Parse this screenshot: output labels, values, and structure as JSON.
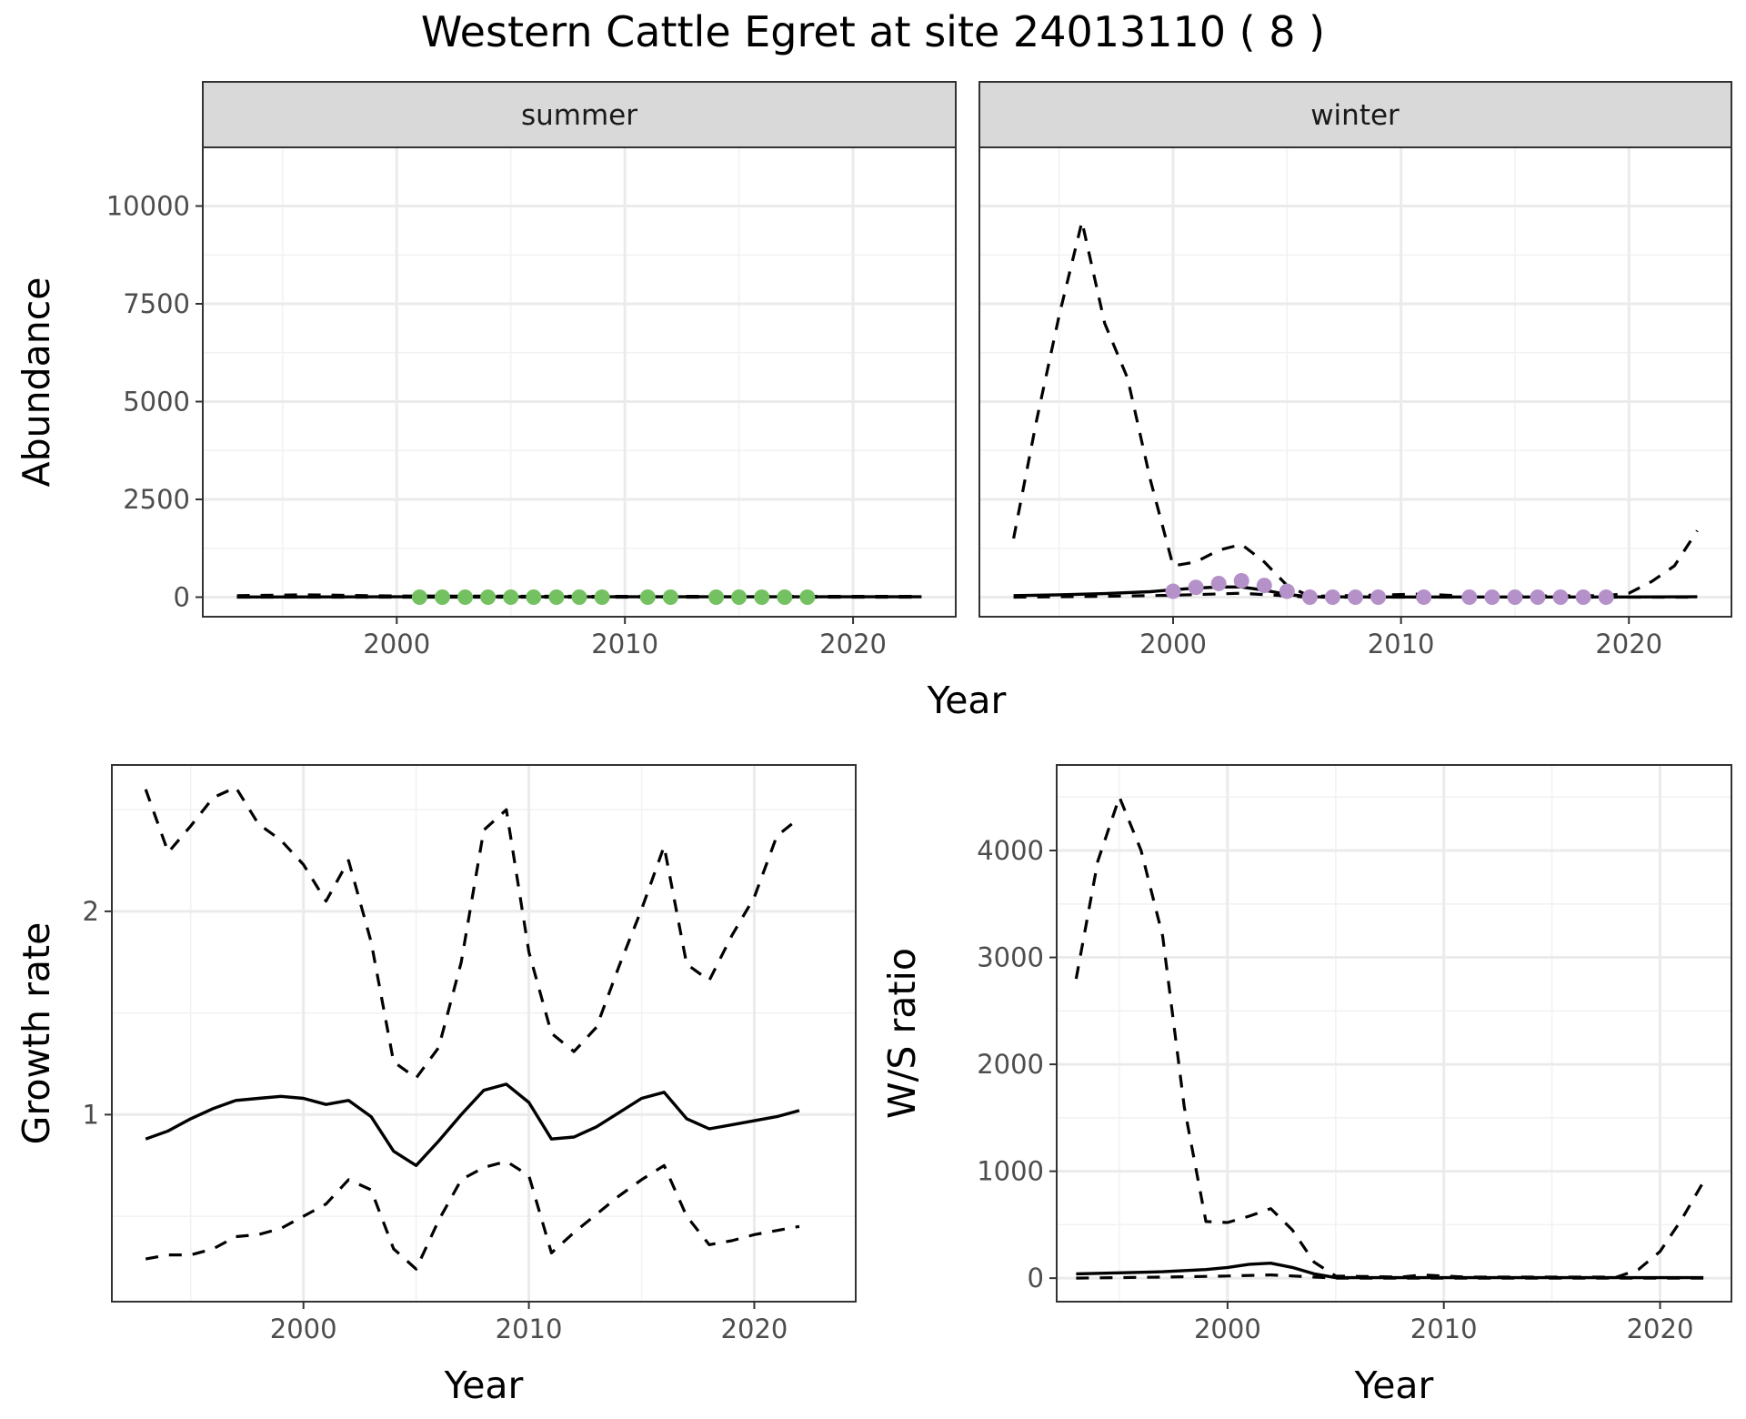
{
  "title": "Western Cattle Egret at site 24013110 ( 8 )",
  "chart_data": [
    {
      "id": "abundance",
      "type": "line",
      "facets": [
        "summer",
        "winter"
      ],
      "xlabel": "Year",
      "ylabel": "Abundance",
      "xlim": [
        1991.5,
        2024.5
      ],
      "ylim": [
        -500,
        11500
      ],
      "xticks": [
        2000,
        2010,
        2020
      ],
      "yticks": [
        0,
        2500,
        5000,
        7500,
        10000
      ],
      "grid": true,
      "colors": {
        "summer_points": "#74c162",
        "winter_points": "#b591c9",
        "lines": "#000000"
      },
      "summer": {
        "fit": [
          [
            1993,
            5
          ],
          [
            2000,
            10
          ],
          [
            2010,
            10
          ],
          [
            2020,
            10
          ],
          [
            2023,
            10
          ]
        ],
        "upper": [
          [
            1993,
            40
          ],
          [
            1996,
            60
          ],
          [
            2000,
            30
          ],
          [
            2010,
            20
          ],
          [
            2020,
            20
          ],
          [
            2023,
            20
          ]
        ],
        "lower": [
          [
            1993,
            0
          ],
          [
            2023,
            0
          ]
        ],
        "points": [
          [
            2001,
            0
          ],
          [
            2002,
            0
          ],
          [
            2003,
            0
          ],
          [
            2004,
            0
          ],
          [
            2005,
            0
          ],
          [
            2006,
            0
          ],
          [
            2007,
            0
          ],
          [
            2008,
            0
          ],
          [
            2009,
            0
          ],
          [
            2011,
            0
          ],
          [
            2012,
            0
          ],
          [
            2014,
            0
          ],
          [
            2015,
            0
          ],
          [
            2016,
            0
          ],
          [
            2017,
            0
          ],
          [
            2018,
            0
          ]
        ]
      },
      "winter": {
        "fit": [
          [
            1993,
            40
          ],
          [
            1995,
            60
          ],
          [
            1997,
            90
          ],
          [
            1999,
            140
          ],
          [
            2000,
            190
          ],
          [
            2001,
            230
          ],
          [
            2002,
            260
          ],
          [
            2003,
            260
          ],
          [
            2004,
            180
          ],
          [
            2005,
            70
          ],
          [
            2006,
            10
          ],
          [
            2010,
            5
          ],
          [
            2020,
            5
          ],
          [
            2023,
            10
          ]
        ],
        "upper": [
          [
            1993,
            1500
          ],
          [
            1994,
            4500
          ],
          [
            1995,
            7200
          ],
          [
            1996,
            9600
          ],
          [
            1997,
            7000
          ],
          [
            1998,
            5600
          ],
          [
            1999,
            3000
          ],
          [
            2000,
            800
          ],
          [
            2001,
            900
          ],
          [
            2002,
            1200
          ],
          [
            2003,
            1350
          ],
          [
            2004,
            900
          ],
          [
            2005,
            300
          ],
          [
            2006,
            20
          ],
          [
            2011,
            80
          ],
          [
            2013,
            20
          ],
          [
            2019,
            40
          ],
          [
            2020,
            100
          ],
          [
            2021,
            400
          ],
          [
            2022,
            800
          ],
          [
            2023,
            1700
          ]
        ],
        "lower": [
          [
            1993,
            0
          ],
          [
            1997,
            20
          ],
          [
            2000,
            50
          ],
          [
            2003,
            100
          ],
          [
            2005,
            30
          ],
          [
            2006,
            0
          ],
          [
            2023,
            0
          ]
        ],
        "points": [
          [
            2000,
            150
          ],
          [
            2001,
            250
          ],
          [
            2002,
            350
          ],
          [
            2003,
            420
          ],
          [
            2004,
            300
          ],
          [
            2005,
            150
          ],
          [
            2006,
            0
          ],
          [
            2007,
            0
          ],
          [
            2008,
            0
          ],
          [
            2009,
            0
          ],
          [
            2011,
            0
          ],
          [
            2013,
            0
          ],
          [
            2014,
            0
          ],
          [
            2015,
            0
          ],
          [
            2016,
            0
          ],
          [
            2017,
            0
          ],
          [
            2018,
            0
          ],
          [
            2019,
            0
          ]
        ]
      }
    },
    {
      "id": "growth",
      "type": "line",
      "xlabel": "Year",
      "ylabel": "Growth rate",
      "xlim": [
        1991.5,
        2024.5
      ],
      "ylim": [
        0.08,
        2.72
      ],
      "xticks": [
        2000,
        2010,
        2020
      ],
      "yticks": [
        1,
        2
      ],
      "grid": true,
      "fit": [
        [
          1993,
          0.88
        ],
        [
          1994,
          0.92
        ],
        [
          1995,
          0.98
        ],
        [
          1996,
          1.03
        ],
        [
          1997,
          1.07
        ],
        [
          1998,
          1.08
        ],
        [
          1999,
          1.09
        ],
        [
          2000,
          1.08
        ],
        [
          2001,
          1.05
        ],
        [
          2002,
          1.07
        ],
        [
          2003,
          0.99
        ],
        [
          2004,
          0.82
        ],
        [
          2005,
          0.75
        ],
        [
          2006,
          0.87
        ],
        [
          2007,
          1.0
        ],
        [
          2008,
          1.12
        ],
        [
          2009,
          1.15
        ],
        [
          2010,
          1.06
        ],
        [
          2011,
          0.88
        ],
        [
          2012,
          0.89
        ],
        [
          2013,
          0.94
        ],
        [
          2014,
          1.01
        ],
        [
          2015,
          1.08
        ],
        [
          2016,
          1.11
        ],
        [
          2017,
          0.98
        ],
        [
          2018,
          0.93
        ],
        [
          2019,
          0.95
        ],
        [
          2020,
          0.97
        ],
        [
          2021,
          0.99
        ],
        [
          2022,
          1.02
        ]
      ],
      "upper": [
        [
          1993,
          2.6
        ],
        [
          1994,
          2.29
        ],
        [
          1995,
          2.42
        ],
        [
          1996,
          2.56
        ],
        [
          1997,
          2.61
        ],
        [
          1998,
          2.43
        ],
        [
          1999,
          2.35
        ],
        [
          2000,
          2.23
        ],
        [
          2001,
          2.05
        ],
        [
          2002,
          2.25
        ],
        [
          2003,
          1.85
        ],
        [
          2004,
          1.26
        ],
        [
          2005,
          1.18
        ],
        [
          2006,
          1.33
        ],
        [
          2007,
          1.75
        ],
        [
          2008,
          2.4
        ],
        [
          2009,
          2.5
        ],
        [
          2010,
          1.8
        ],
        [
          2011,
          1.4
        ],
        [
          2012,
          1.31
        ],
        [
          2013,
          1.43
        ],
        [
          2014,
          1.73
        ],
        [
          2015,
          2.01
        ],
        [
          2016,
          2.32
        ],
        [
          2017,
          1.74
        ],
        [
          2018,
          1.66
        ],
        [
          2019,
          1.88
        ],
        [
          2020,
          2.07
        ],
        [
          2021,
          2.37
        ],
        [
          2022,
          2.46
        ]
      ],
      "lower": [
        [
          1993,
          0.29
        ],
        [
          1994,
          0.31
        ],
        [
          1995,
          0.31
        ],
        [
          1996,
          0.34
        ],
        [
          1997,
          0.4
        ],
        [
          1998,
          0.41
        ],
        [
          1999,
          0.44
        ],
        [
          2000,
          0.5
        ],
        [
          2001,
          0.56
        ],
        [
          2002,
          0.68
        ],
        [
          2003,
          0.63
        ],
        [
          2004,
          0.34
        ],
        [
          2005,
          0.24
        ],
        [
          2006,
          0.48
        ],
        [
          2007,
          0.68
        ],
        [
          2008,
          0.74
        ],
        [
          2009,
          0.77
        ],
        [
          2010,
          0.7
        ],
        [
          2011,
          0.32
        ],
        [
          2012,
          0.42
        ],
        [
          2013,
          0.51
        ],
        [
          2014,
          0.6
        ],
        [
          2015,
          0.68
        ],
        [
          2016,
          0.75
        ],
        [
          2017,
          0.5
        ],
        [
          2018,
          0.36
        ],
        [
          2019,
          0.38
        ],
        [
          2020,
          0.41
        ],
        [
          2021,
          0.43
        ],
        [
          2022,
          0.45
        ]
      ]
    },
    {
      "id": "ratio",
      "type": "line",
      "xlabel": "Year",
      "ylabel": "W/S ratio",
      "xlim": [
        1992.1,
        2023.3
      ],
      "ylim": [
        -220,
        4800
      ],
      "xticks": [
        2000,
        2010,
        2020
      ],
      "yticks": [
        0,
        1000,
        2000,
        3000,
        4000
      ],
      "grid": true,
      "fit": [
        [
          1993,
          40
        ],
        [
          1995,
          50
        ],
        [
          1997,
          60
        ],
        [
          1999,
          80
        ],
        [
          2000,
          100
        ],
        [
          2001,
          130
        ],
        [
          2002,
          140
        ],
        [
          2003,
          100
        ],
        [
          2004,
          40
        ],
        [
          2005,
          5
        ],
        [
          2010,
          5
        ],
        [
          2015,
          5
        ],
        [
          2020,
          5
        ],
        [
          2022,
          5
        ]
      ],
      "upper": [
        [
          1993,
          2800
        ],
        [
          1994,
          3900
        ],
        [
          1995,
          4500
        ],
        [
          1996,
          4000
        ],
        [
          1997,
          3200
        ],
        [
          1998,
          1600
        ],
        [
          1999,
          530
        ],
        [
          2000,
          520
        ],
        [
          2001,
          580
        ],
        [
          2002,
          650
        ],
        [
          2003,
          450
        ],
        [
          2004,
          150
        ],
        [
          2005,
          20
        ],
        [
          2008,
          10
        ],
        [
          2009,
          30
        ],
        [
          2011,
          10
        ],
        [
          2018,
          10
        ],
        [
          2019,
          80
        ],
        [
          2020,
          250
        ],
        [
          2021,
          550
        ],
        [
          2022,
          900
        ]
      ],
      "lower": [
        [
          1993,
          0
        ],
        [
          1997,
          10
        ],
        [
          2000,
          20
        ],
        [
          2002,
          30
        ],
        [
          2005,
          0
        ],
        [
          2022,
          0
        ]
      ]
    }
  ]
}
